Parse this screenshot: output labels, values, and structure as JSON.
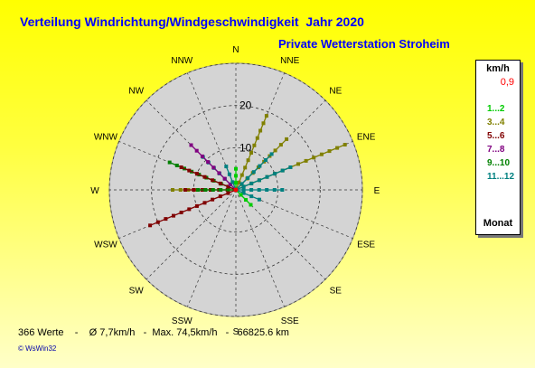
{
  "header": {
    "title": "Verteilung Windrichtung/Windgeschwindigkeit  Jahr 2020",
    "subtitle": "Private Wetterstation Stroheim"
  },
  "legend": {
    "unit": "km/h",
    "calm": "0,9",
    "items": [
      {
        "label": "1...2",
        "color": "#00cc00"
      },
      {
        "label": "3...4",
        "color": "#808000"
      },
      {
        "label": "5...6",
        "color": "#800000"
      },
      {
        "label": "7...8",
        "color": "#800080"
      },
      {
        "label": "9...10",
        "color": "#008000"
      },
      {
        "label": "11...12",
        "color": "#008080"
      }
    ],
    "footer": "Monat"
  },
  "footer": {
    "stats": "366 Werte    -    Ø 7,7km/h   -  Max. 74,5km/h   -   66825.6 km",
    "credit": "© WsWin32"
  },
  "chart_data": {
    "type": "polar",
    "directions": [
      "N",
      "NNE",
      "NE",
      "ENE",
      "E",
      "ESE",
      "SE",
      "SSE",
      "S",
      "SSW",
      "SW",
      "WSW",
      "W",
      "WNW",
      "NW",
      "NNW"
    ],
    "radial_ticks": [
      10,
      20
    ],
    "rmax": 30,
    "rays": [
      {
        "dir": "W",
        "length": 15,
        "color": "#808000"
      },
      {
        "dir": "W",
        "length": 12,
        "color": "#800000"
      },
      {
        "dir": "W",
        "length": 9,
        "color": "#008000"
      },
      {
        "dir": "WNW",
        "length": 17,
        "color": "#008000"
      },
      {
        "dir": "WNW",
        "length": 14,
        "color": "#800000"
      },
      {
        "dir": "NW",
        "length": 11,
        "color": "#008080"
      },
      {
        "dir": "NW",
        "length": 15,
        "color": "#800080"
      },
      {
        "dir": "NNW",
        "length": 6,
        "color": "#008080"
      },
      {
        "dir": "NNE",
        "length": 19,
        "color": "#808000"
      },
      {
        "dir": "NE",
        "length": 17,
        "color": "#808000"
      },
      {
        "dir": "NE",
        "length": 12,
        "color": "#008080"
      },
      {
        "dir": "ENE",
        "length": 28,
        "color": "#808000"
      },
      {
        "dir": "ENE",
        "length": 14,
        "color": "#008080"
      },
      {
        "dir": "E",
        "length": 11,
        "color": "#008080"
      },
      {
        "dir": "ESE",
        "length": 6,
        "color": "#008080"
      },
      {
        "dir": "SE",
        "length": 5,
        "color": "#00cc00"
      },
      {
        "dir": "WSW",
        "length": 22,
        "color": "#800000"
      },
      {
        "dir": "N",
        "length": 5,
        "color": "#00cc00"
      }
    ]
  }
}
